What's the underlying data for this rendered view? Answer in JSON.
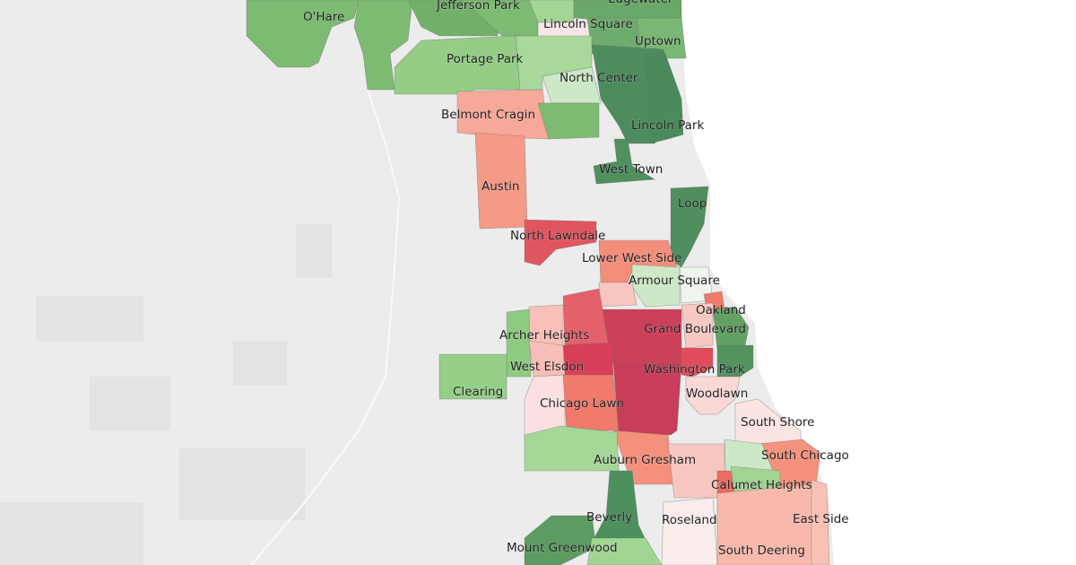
{
  "map": {
    "background_land": "#ececec",
    "background_water": "#ffffff",
    "color_scale": {
      "low_good": "#4d8d5d",
      "mid": "#f9e8e8",
      "high_bad": "#c83d59"
    },
    "labels": [
      "Edgewater",
      "O'Hare",
      "Jefferson Park",
      "Lincoln Square",
      "Uptown",
      "Portage Park",
      "North Center",
      "Belmont Cragin",
      "Lincoln Park",
      "West Town",
      "Austin",
      "Loop",
      "North Lawndale",
      "Lower West Side",
      "Armour Square",
      "Oakland",
      "Grand Boulevard",
      "Archer Heights",
      "West Elsdon",
      "Washington Park",
      "Clearing",
      "Chicago Lawn",
      "Woodlawn",
      "South Shore",
      "South Chicago",
      "Auburn Gresham",
      "Calumet Heights",
      "Beverly",
      "Roseland",
      "East Side",
      "Mount Greenwood",
      "South Deering"
    ],
    "regions": {
      "ohare": "#7dba72",
      "norwood": "#7dba72",
      "jefferson": "#72b06a",
      "forestglen": "#7dba72",
      "topLight": "#a3d695",
      "edgewater": "#6aa86a",
      "lsqPink": "#f8e6e6",
      "lsqGreen": "#6eac6e",
      "uptown": "#7ab775",
      "portage": "#95cd86",
      "ncLight": "#a8d99b",
      "paleGreen": "#cde8c6",
      "belmont": "#f6a899",
      "cragRight": "#7dba72",
      "ncDark": "#4d8d5d",
      "lincolnPark": "#4a8a5b",
      "westTown": "#50905f",
      "austin": "#f49a86",
      "northLawndale": "#e0565f",
      "loop": "#4f8f5e",
      "lowerWest": "#f48e7c",
      "armour": "#cde8c6",
      "armourPale": "#eef5ec",
      "pinkLW": "#f8c6c0",
      "oakland": "#ef7a6a",
      "greenStripR": "#62a064",
      "greenDarkR": "#53925f",
      "brighton": "#f8c0b8",
      "mckinley": "#e4606a",
      "grandBlvd": "#cd405a",
      "gbPink": "#f8c8c2",
      "washPark": "#e04c5e",
      "woodlawn": "#f9d8d6",
      "westElsdon": "#d93f58",
      "greenStripL": "#8fca82",
      "clearing": "#95cf88",
      "archerPink": "#f8bdb6",
      "lawnPale": "#fae0e0",
      "chicagoLawn": "#f07a6b",
      "englewood": "#c83d59",
      "auburn": "#f4917c",
      "ashburn": "#a5d797",
      "beverly": "#4e8f5e",
      "mtGreenwood": "#5c9c62",
      "bottomGreen": "#a0d592",
      "roseland": "#fbecec",
      "chatham": "#f8c6c0",
      "southShore": "#fbe4e2",
      "southChicago": "#f4927e",
      "calLight": "#cde8c6",
      "redSmall": "#ec6a62",
      "calumet": "#9fd493",
      "southDeering": "#f8b8ac",
      "eastSide": "#f9c0b4"
    }
  }
}
